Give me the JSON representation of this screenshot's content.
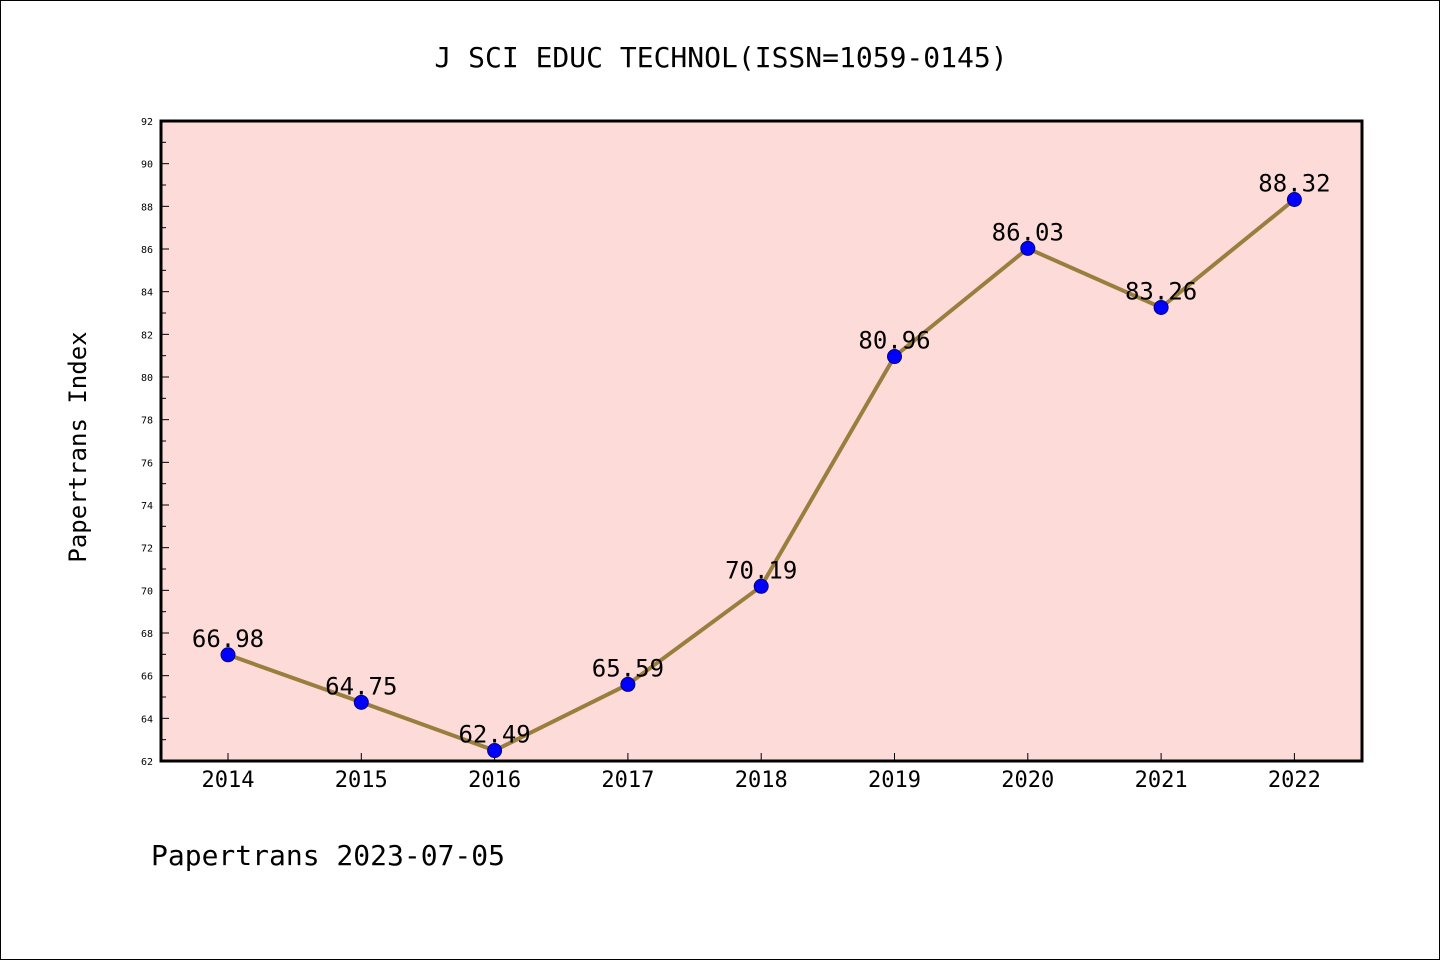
{
  "chart_data": {
    "type": "line",
    "title": "J SCI EDUC TECHNOL(ISSN=1059-0145)",
    "xlabel": "",
    "ylabel": "Papertrans Index",
    "categories": [
      "2014",
      "2015",
      "2016",
      "2017",
      "2018",
      "2019",
      "2020",
      "2021",
      "2022"
    ],
    "series": [
      {
        "values": [
          66.98,
          64.75,
          62.49,
          65.59,
          70.19,
          80.96,
          86.03,
          83.26,
          88.32
        ]
      }
    ],
    "data_labels": [
      "66.98",
      "64.75",
      "62.49",
      "65.59",
      "70.19",
      "80.96",
      "86.03",
      "83.26",
      "88.32"
    ],
    "ylim": [
      62,
      92
    ],
    "yticks": [
      "62",
      "64",
      "66",
      "68",
      "70",
      "72",
      "74",
      "76",
      "78",
      "80",
      "82",
      "84",
      "86",
      "88",
      "90",
      "92"
    ],
    "grid": false,
    "footer": "Papertrans 2023-07-05",
    "colors": {
      "plot_background": "#fddbd9",
      "line": "#9a7e3e",
      "marker": "#0000ff",
      "marker_edge": "#000080"
    }
  }
}
